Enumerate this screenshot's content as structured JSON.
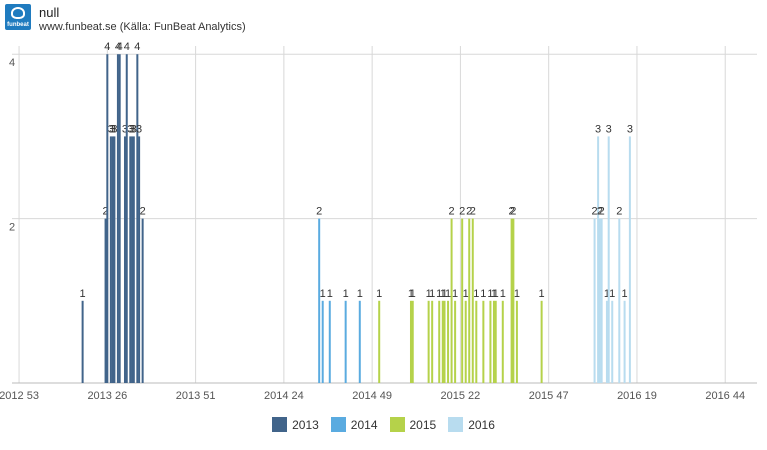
{
  "header": {
    "logo_text": "funbeat",
    "title": "null",
    "subtitle": "www.funbeat.se (Källa: FunBeat Analytics)"
  },
  "chart_data": {
    "type": "bar",
    "title": "null",
    "subtitle": "www.funbeat.se (Källa: FunBeat Analytics)",
    "x_ticks": [
      "2012 53",
      "2013 26",
      "2013 51",
      "2014 24",
      "2014 49",
      "2015 22",
      "2015 47",
      "2016 19",
      "2016 44"
    ],
    "x_range": [
      -0.04,
      4.18
    ],
    "ylim": [
      0,
      4.1
    ],
    "y_ticks": [
      2,
      4
    ],
    "grid": true,
    "legend_position": "bottom",
    "series": [
      {
        "name": "2013",
        "color": "#41648a",
        "x": [
          0.36,
          0.49,
          0.5,
          0.52,
          0.53,
          0.54,
          0.56,
          0.57,
          0.6,
          0.61,
          0.63,
          0.64,
          0.65,
          0.67,
          0.68,
          0.7
        ],
        "values": [
          1,
          2,
          4,
          3,
          3,
          3,
          4,
          4,
          3,
          4,
          3,
          3,
          3,
          4,
          3,
          2
        ]
      },
      {
        "name": "2014",
        "color": "#5aabe0",
        "x": [
          1.7,
          1.72,
          1.76,
          1.85,
          1.93
        ],
        "values": [
          2,
          1,
          1,
          1,
          1
        ]
      },
      {
        "name": "2015",
        "color": "#b5d24a",
        "x": [
          2.04,
          2.22,
          2.23,
          2.32,
          2.34,
          2.38,
          2.4,
          2.41,
          2.43,
          2.45,
          2.47,
          2.51,
          2.53,
          2.55,
          2.57,
          2.59,
          2.63,
          2.67,
          2.69,
          2.7,
          2.74,
          2.79,
          2.8,
          2.82,
          2.96
        ],
        "values": [
          1,
          1,
          1,
          1,
          1,
          1,
          1,
          1,
          1,
          2,
          1,
          2,
          1,
          2,
          2,
          1,
          1,
          1,
          1,
          1,
          1,
          2,
          2,
          1,
          1
        ]
      },
      {
        "name": "2016",
        "color": "#b8dcef",
        "x": [
          3.26,
          3.28,
          3.29,
          3.3,
          3.33,
          3.34,
          3.36,
          3.4,
          3.43,
          3.46
        ],
        "values": [
          2,
          3,
          2,
          2,
          1,
          3,
          1,
          2,
          1,
          3
        ]
      }
    ]
  }
}
